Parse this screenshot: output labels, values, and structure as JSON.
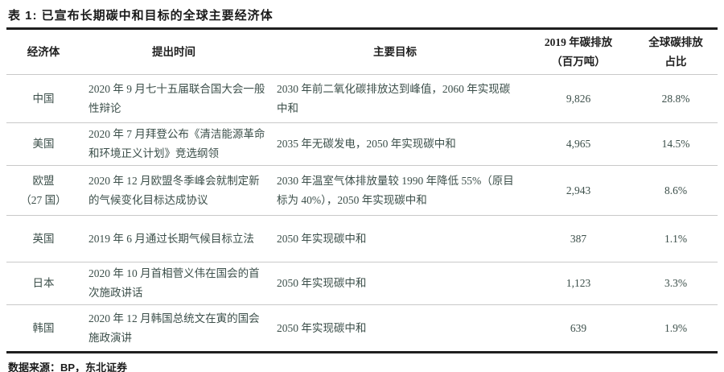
{
  "title": "表 1: 已宣布长期碳中和目标的全球主要经济体",
  "table": {
    "columns": [
      {
        "label": "经济体"
      },
      {
        "label": "提出时间"
      },
      {
        "label": "主要目标"
      },
      {
        "label": "2019 年碳排放\n（百万吨）"
      },
      {
        "label": "全球碳排放\n占比"
      }
    ],
    "rows": [
      {
        "economy": "中国",
        "announced": "2020 年 9 月七十五届联合国大会一般性辩论",
        "target": "2030 年前二氧化碳排放达到峰值，2060 年实现碳中和",
        "emissions_2019_mt": "9,826",
        "global_share": "28.8%"
      },
      {
        "economy": "美国",
        "announced": "2020 年 7 月拜登公布《清洁能源革命和环境正义计划》竞选纲领",
        "target": "2035 年无碳发电，2050 年实现碳中和",
        "emissions_2019_mt": "4,965",
        "global_share": "14.5%"
      },
      {
        "economy": "欧盟\n（27 国）",
        "announced": "2020 年 12 月欧盟冬季峰会就制定新的气候变化目标达成协议",
        "target": "2030 年温室气体排放量较 1990 年降低 55%（原目标为 40%），2050 年实现碳中和",
        "emissions_2019_mt": "2,943",
        "global_share": "8.6%"
      },
      {
        "economy": "英国",
        "announced": "2019 年 6 月通过长期气候目标立法",
        "target": "2050 年实现碳中和",
        "emissions_2019_mt": "387",
        "global_share": "1.1%"
      },
      {
        "economy": "日本",
        "announced": "2020 年 10 月首相菅义伟在国会的首次施政讲话",
        "target": "2050 年实现碳中和",
        "emissions_2019_mt": "1,123",
        "global_share": "3.3%"
      },
      {
        "economy": "韩国",
        "announced": "2020 年 12 月韩国总统文在寅的国会施政演讲",
        "target": "2050 年实现碳中和",
        "emissions_2019_mt": "639",
        "global_share": "1.9%"
      }
    ]
  },
  "footer": {
    "source": "数据来源：BP，东北证券"
  },
  "colors": {
    "page_background": "#ffffff",
    "title_text": "#1a1a1a",
    "header_text": "#1f1f1f",
    "body_text": "#3c4f4a",
    "rule_heavy": "#1f1f1f",
    "rule_light": "#c9c9c9"
  }
}
